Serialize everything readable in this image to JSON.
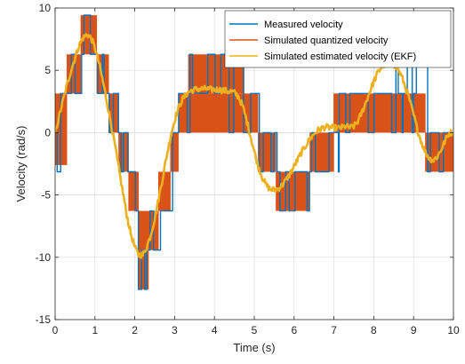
{
  "chart_data": {
    "type": "line",
    "xlabel": "Time (s)",
    "ylabel": "Velocity (rad/s)",
    "xlim": [
      0,
      10
    ],
    "ylim": [
      -15,
      10
    ],
    "x_ticks": [
      0,
      1,
      2,
      3,
      4,
      5,
      6,
      7,
      8,
      9,
      10
    ],
    "y_ticks": [
      -15,
      -10,
      -5,
      0,
      5,
      10
    ],
    "grid": true,
    "legend_position": "top-right",
    "quantization_step": 3.14,
    "series": [
      {
        "name": "Measured velocity",
        "color": "#0072BD",
        "kind": "quantized-steps",
        "segments": [
          {
            "t": [
              0.0,
              0.35
            ],
            "levels": [
              -3.14,
              0,
              3.14
            ]
          },
          {
            "t": [
              0.35,
              0.62
            ],
            "levels": [
              3.14,
              6.28
            ]
          },
          {
            "t": [
              0.62,
              1.05
            ],
            "levels": [
              6.28,
              9.42
            ]
          },
          {
            "t": [
              1.05,
              1.35
            ],
            "levels": [
              3.14,
              6.28
            ]
          },
          {
            "t": [
              1.35,
              1.6
            ],
            "levels": [
              0,
              3.14
            ]
          },
          {
            "t": [
              1.6,
              1.85
            ],
            "levels": [
              -3.14,
              0
            ]
          },
          {
            "t": [
              1.85,
              2.05
            ],
            "levels": [
              -6.28,
              -3.14
            ]
          },
          {
            "t": [
              2.05,
              2.35
            ],
            "levels": [
              -12.57,
              -9.42,
              -6.28
            ]
          },
          {
            "t": [
              2.35,
              2.6
            ],
            "levels": [
              -9.42,
              -6.28
            ]
          },
          {
            "t": [
              2.6,
              2.9
            ],
            "levels": [
              -6.28,
              -3.14
            ]
          },
          {
            "t": [
              2.9,
              3.1
            ],
            "levels": [
              -3.14,
              0
            ]
          },
          {
            "t": [
              3.1,
              3.35
            ],
            "levels": [
              0,
              3.14
            ]
          },
          {
            "t": [
              3.35,
              4.7
            ],
            "levels": [
              0,
              3.14,
              6.28
            ]
          },
          {
            "t": [
              4.7,
              5.1
            ],
            "levels": [
              0,
              3.14
            ]
          },
          {
            "t": [
              5.1,
              5.3
            ],
            "levels": [
              -3.14,
              0,
              3.14
            ]
          },
          {
            "t": [
              5.3,
              5.6
            ],
            "levels": [
              -3.14,
              0
            ]
          },
          {
            "t": [
              5.6,
              6.35
            ],
            "levels": [
              -6.28,
              -3.14
            ]
          },
          {
            "t": [
              6.35,
              6.9
            ],
            "levels": [
              -3.14,
              0
            ]
          },
          {
            "t": [
              6.9,
              7.2
            ],
            "levels": [
              -3.14,
              0,
              3.14
            ]
          },
          {
            "t": [
              7.2,
              8.0
            ],
            "levels": [
              0,
              3.14
            ]
          },
          {
            "t": [
              8.0,
              9.3
            ],
            "levels": [
              0,
              3.14,
              6.28
            ]
          },
          {
            "t": [
              9.3,
              9.6
            ],
            "levels": [
              -3.14,
              0
            ]
          },
          {
            "t": [
              9.6,
              10.0
            ],
            "levels": [
              -3.14,
              0
            ]
          }
        ]
      },
      {
        "name": "Simulated quantized velocity",
        "color": "#D95319",
        "kind": "quantized-bands",
        "bands": [
          {
            "t": [
              0.0,
              0.3
            ],
            "y": [
              0,
              3.14
            ]
          },
          {
            "t": [
              0.0,
              0.3
            ],
            "y": [
              -2.6,
              0
            ]
          },
          {
            "t": [
              0.3,
              0.65
            ],
            "y": [
              3.14,
              6.28
            ]
          },
          {
            "t": [
              0.65,
              1.05
            ],
            "y": [
              6.28,
              9.42
            ]
          },
          {
            "t": [
              1.05,
              1.35
            ],
            "y": [
              3.14,
              6.28
            ]
          },
          {
            "t": [
              1.35,
              1.6
            ],
            "y": [
              0,
              3.14
            ]
          },
          {
            "t": [
              1.6,
              1.85
            ],
            "y": [
              -3.14,
              0
            ]
          },
          {
            "t": [
              1.85,
              2.1
            ],
            "y": [
              -6.28,
              -3.14
            ]
          },
          {
            "t": [
              2.1,
              2.35
            ],
            "y": [
              -12.57,
              -6.28
            ]
          },
          {
            "t": [
              2.35,
              2.6
            ],
            "y": [
              -9.42,
              -6.28
            ]
          },
          {
            "t": [
              2.6,
              2.9
            ],
            "y": [
              -6.28,
              -3.14
            ]
          },
          {
            "t": [
              2.9,
              3.1
            ],
            "y": [
              -3.14,
              0
            ]
          },
          {
            "t": [
              3.1,
              3.35
            ],
            "y": [
              0,
              3.14
            ]
          },
          {
            "t": [
              3.35,
              4.75
            ],
            "y": [
              3.14,
              6.28
            ]
          },
          {
            "t": [
              3.35,
              4.75
            ],
            "y": [
              0,
              3.14
            ]
          },
          {
            "t": [
              4.75,
              5.1
            ],
            "y": [
              0,
              3.14
            ]
          },
          {
            "t": [
              5.1,
              5.55
            ],
            "y": [
              -3.14,
              0
            ]
          },
          {
            "t": [
              5.55,
              6.4
            ],
            "y": [
              -6.28,
              -3.14
            ]
          },
          {
            "t": [
              6.4,
              7.0
            ],
            "y": [
              -3.14,
              0
            ]
          },
          {
            "t": [
              7.0,
              9.3
            ],
            "y": [
              0,
              3.14
            ]
          },
          {
            "t": [
              9.3,
              10.0
            ],
            "y": [
              -3.14,
              0
            ]
          }
        ]
      },
      {
        "name": "Simulated estimated velocity (EKF)",
        "color": "#EDB120",
        "kind": "line",
        "x": [
          0.0,
          0.1,
          0.2,
          0.3,
          0.4,
          0.5,
          0.6,
          0.7,
          0.8,
          0.9,
          1.0,
          1.1,
          1.2,
          1.3,
          1.4,
          1.5,
          1.6,
          1.7,
          1.8,
          1.9,
          2.0,
          2.1,
          2.2,
          2.3,
          2.4,
          2.5,
          2.6,
          2.7,
          2.8,
          2.9,
          3.0,
          3.1,
          3.2,
          3.3,
          3.4,
          3.5,
          3.6,
          3.7,
          3.8,
          3.9,
          4.0,
          4.1,
          4.2,
          4.3,
          4.4,
          4.5,
          4.6,
          4.7,
          4.8,
          4.9,
          5.0,
          5.1,
          5.2,
          5.3,
          5.4,
          5.5,
          5.6,
          5.7,
          5.8,
          5.9,
          6.0,
          6.1,
          6.2,
          6.3,
          6.4,
          6.5,
          6.6,
          6.7,
          6.8,
          6.9,
          7.0,
          7.1,
          7.2,
          7.3,
          7.4,
          7.5,
          7.6,
          7.7,
          7.8,
          7.9,
          8.0,
          8.1,
          8.2,
          8.3,
          8.4,
          8.5,
          8.6,
          8.7,
          8.8,
          8.9,
          9.0,
          9.1,
          9.2,
          9.3,
          9.4,
          9.5,
          9.6,
          9.7,
          9.8,
          9.9,
          10.0
        ],
        "y": [
          0.0,
          1.3,
          2.6,
          3.8,
          5.0,
          6.0,
          7.0,
          7.6,
          7.9,
          7.6,
          6.8,
          5.6,
          4.1,
          2.5,
          0.8,
          -1.0,
          -2.9,
          -4.8,
          -6.6,
          -8.1,
          -9.2,
          -9.8,
          -9.8,
          -9.2,
          -8.2,
          -6.9,
          -5.3,
          -3.6,
          -1.9,
          -0.3,
          1.0,
          2.0,
          2.7,
          3.1,
          3.35,
          3.45,
          3.5,
          3.5,
          3.5,
          3.45,
          3.45,
          3.45,
          3.4,
          3.35,
          3.3,
          3.2,
          2.9,
          2.2,
          1.1,
          -0.2,
          -1.5,
          -2.7,
          -3.6,
          -4.2,
          -4.55,
          -4.6,
          -4.5,
          -4.2,
          -3.8,
          -3.3,
          -2.7,
          -2.1,
          -1.5,
          -1.0,
          -0.5,
          -0.1,
          0.2,
          0.35,
          0.45,
          0.4,
          0.4,
          0.35,
          0.4,
          0.5,
          0.4,
          0.5,
          0.9,
          1.6,
          2.4,
          3.3,
          4.1,
          4.8,
          5.3,
          5.5,
          5.6,
          5.5,
          5.1,
          4.5,
          3.6,
          2.6,
          1.4,
          0.2,
          -0.8,
          -1.6,
          -2.1,
          -2.2,
          -1.9,
          -1.3,
          -0.6,
          0.0,
          0.0
        ]
      }
    ]
  }
}
